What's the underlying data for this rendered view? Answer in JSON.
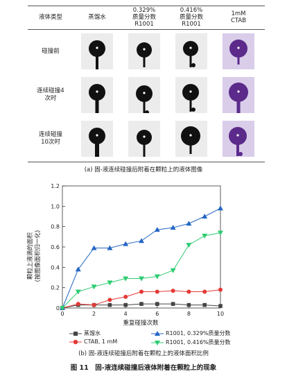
{
  "table": {
    "corner_label": "液体类型",
    "columns": [
      {
        "label": "蒸馏水"
      },
      {
        "label": "0.329%\n质量分数\nR1001"
      },
      {
        "label": "0.416%\n质量分数\nR1001"
      },
      {
        "label": "1mM\nCTAB"
      }
    ],
    "rows": [
      {
        "label": "碰撞前"
      },
      {
        "label": "连续碰撞4\n次时"
      },
      {
        "label": "连续碰撞\n10次时"
      }
    ],
    "drop_color": "#111111",
    "ctab_color": "#5b2a8a"
  },
  "caption_a": "(a) 固-液连续碰撞后附着在颗粒上的液体图像",
  "caption_b": "(b) 固-液连续碰撞后附着在颗粒上的液体面积比例",
  "figure_title": "图 11　固-液连续碰撞后液体附着在颗粒上的现象",
  "chart_data": {
    "type": "line",
    "xlabel": "重复碰撞次数",
    "ylabel": "颗粒上液滴的面积\n(按图像面积归一化)",
    "xlim": [
      0,
      10
    ],
    "ylim": [
      0,
      1.2
    ],
    "x_ticks": [
      "0",
      "2",
      "4",
      "6",
      "8",
      "10"
    ],
    "y_ticks": [
      "0",
      "0.2",
      "0.4",
      "0.6",
      "0.8",
      "1.0",
      "1.2"
    ],
    "x": [
      0,
      1,
      2,
      3,
      4,
      5,
      6,
      7,
      8,
      9,
      10
    ],
    "series": [
      {
        "name": "蒸馏水",
        "marker": "square",
        "color": "#444444",
        "values": [
          0.0,
          0.03,
          0.03,
          0.03,
          0.03,
          0.04,
          0.04,
          0.04,
          0.03,
          0.03,
          0.02
        ]
      },
      {
        "name": "CTAB, 1 mM",
        "marker": "circle",
        "color": "#e53935",
        "values": [
          0.0,
          0.04,
          0.03,
          0.08,
          0.11,
          0.16,
          0.16,
          0.17,
          0.16,
          0.16,
          0.18
        ]
      },
      {
        "name": "R1001, 0.329%质量分数",
        "marker": "triangle-up",
        "color": "#2466c4",
        "values": [
          0.0,
          0.38,
          0.59,
          0.59,
          0.63,
          0.66,
          0.77,
          0.79,
          0.83,
          0.9,
          0.98
        ]
      },
      {
        "name": "R1001, 0.416%质量分数",
        "marker": "triangle-down",
        "color": "#2ecc71",
        "values": [
          0.0,
          0.16,
          0.21,
          0.25,
          0.29,
          0.29,
          0.31,
          0.37,
          0.62,
          0.71,
          0.74
        ]
      }
    ],
    "legend_position": "bottom"
  }
}
